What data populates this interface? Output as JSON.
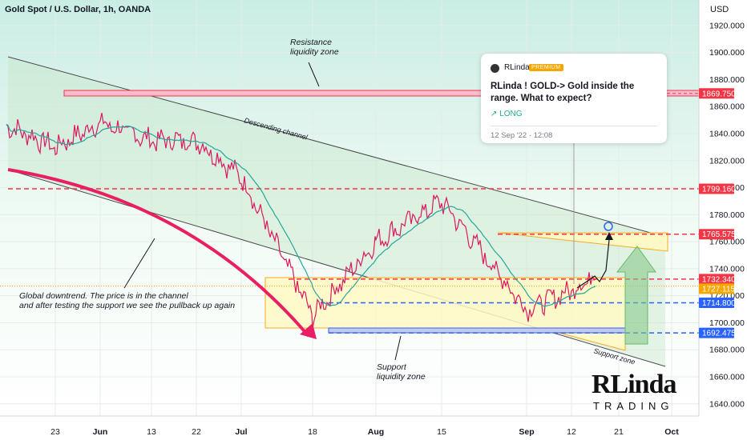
{
  "header": {
    "symbol": "Gold Spot / U.S. Dollar, 1h, OANDA",
    "currency": "USD"
  },
  "popup": {
    "author": "RLinda",
    "badge": "PREMIUM",
    "title": "RLinda ! GOLD-> Gold inside the range. What to expect?",
    "direction": "LONG",
    "direction_icon": "arrow-up-right-icon",
    "date": "12 Sep '22 · 12:08"
  },
  "logo": {
    "main": "RLinda",
    "sub": "TRADING"
  },
  "colors": {
    "candle": "#d81b60",
    "ma": "#26a69a",
    "level": "#f23645",
    "support": "#2962ff",
    "channel_fill": "#c8e6c9",
    "zone_fill": "#fff9c4",
    "zone_border": "#f9a825",
    "arrow": "#e91e63"
  },
  "chart_data": {
    "type": "line",
    "instrument": "Gold Spot / U.S. Dollar",
    "timeframe": "1h",
    "x_ticks": [
      "23",
      "Jun",
      "13",
      "22",
      "Jul",
      "18",
      "Aug",
      "15",
      "Sep",
      "12",
      "21",
      "Oct"
    ],
    "y_ticks": [
      1920,
      1900,
      1880,
      1860,
      1840,
      1820,
      1800,
      1780,
      1760,
      1740,
      1720,
      1700,
      1680,
      1660,
      1640
    ],
    "ylim": [
      1626,
      1930
    ],
    "price_labels": [
      {
        "value": 1869.75,
        "text": "1869.750",
        "color": "#f23645"
      },
      {
        "value": 1799.16,
        "text": "1799.160",
        "color": "#f23645"
      },
      {
        "value": 1765.575,
        "text": "1765.575",
        "color": "#f23645"
      },
      {
        "value": 1732.34,
        "text": "1732.340",
        "color": "#f23645"
      },
      {
        "value": 1727.115,
        "text": "1727.115",
        "color": "#f7a600"
      },
      {
        "value": 1714.8,
        "text": "1714.800",
        "color": "#2962ff"
      },
      {
        "value": 1692.475,
        "text": "1692.475",
        "color": "#2962ff"
      }
    ],
    "price_series": [
      [
        "23",
        1830
      ],
      [
        "Jun",
        1848
      ],
      [
        "13",
        1835
      ],
      [
        "22",
        1835
      ],
      [
        "Jul",
        1808
      ],
      [
        "18",
        1705
      ],
      [
        "Aug",
        1760
      ],
      [
        "15",
        1790
      ],
      [
        "Sep",
        1710
      ],
      [
        "12",
        1724
      ]
    ],
    "annotations": [
      "Resistance liquidity zone",
      "Descending channel",
      "Global downtrend. The price is in the channel and after testing the support we see the pullback up again",
      "Support liquidity zone",
      "Support zone"
    ]
  }
}
